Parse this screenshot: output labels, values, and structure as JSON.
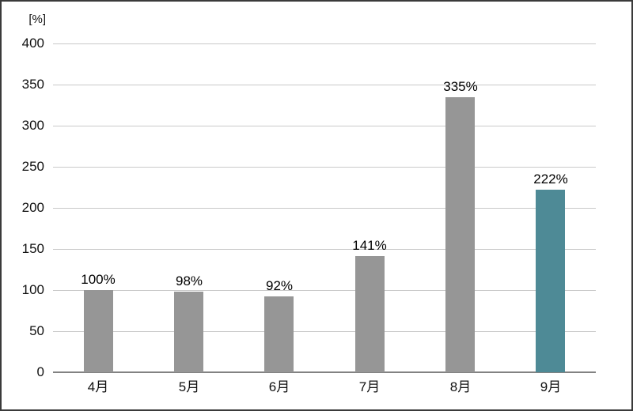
{
  "chart_data": {
    "type": "bar",
    "title": "",
    "xlabel": "",
    "ylabel": "[%]",
    "categories": [
      "4月",
      "5月",
      "6月",
      "7月",
      "8月",
      "9月"
    ],
    "values": [
      100,
      98,
      92,
      141,
      335,
      222
    ],
    "value_labels": [
      "100%",
      "98%",
      "92%",
      "141%",
      "335%",
      "222%"
    ],
    "ylim": [
      0,
      400
    ],
    "ytick_interval": 50,
    "yticks": [
      0,
      50,
      100,
      150,
      200,
      250,
      300,
      350,
      400
    ],
    "grid": true,
    "legend": false,
    "highlight_index": 5,
    "colors": {
      "bar": "#969696",
      "highlight_bar": "#4e8a96",
      "gridline": "#c9c9c9",
      "axis_line": "#828282",
      "frame_border": "#3a3a3a",
      "text": "#111111"
    }
  }
}
